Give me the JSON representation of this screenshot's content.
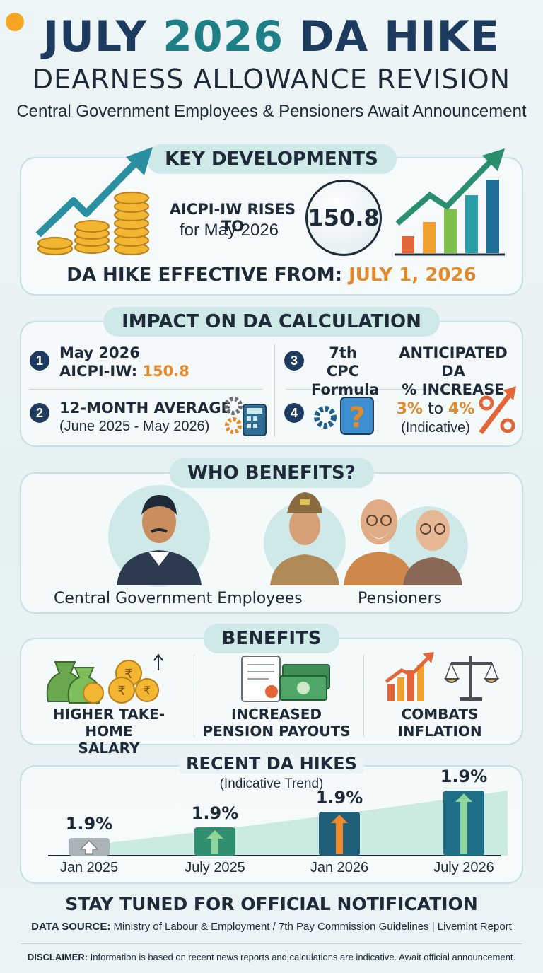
{
  "header": {
    "logo_text": "",
    "title_part1": "JULY ",
    "title_part2": "2026",
    "title_part3": " DA HIKE",
    "subtitle": "DEARNESS ALLOWANCE REVISION",
    "tagline": "Central Government Employees & Pensioners Await Announcement"
  },
  "key_developments": {
    "heading": "KEY DEVELOPMENTS",
    "aicpi_label": "AICPI-IW RISES TO",
    "aicpi_sub": "for May 2026",
    "aicpi_value": "150.8",
    "effective_label": "DA HIKE EFFECTIVE FROM: ",
    "effective_date": "JULY 1, 2026",
    "icons": [
      "rising-arrow-coins-icon",
      "bar-chart-arrow-icon"
    ]
  },
  "impact": {
    "heading": "IMPACT ON DA CALCULATION",
    "item1_num": "1",
    "item1_line1": "May 2026",
    "item1_line2": "AICPI-IW: ",
    "item1_value": "150.8",
    "item2_num": "2",
    "item2_line1": "12-MONTH AVERAGE",
    "item2_line2": "(June 2025 - May 2026)",
    "item3_num": "3",
    "item3_line1": "7th CPC",
    "item3_line2": "Formula",
    "item3_right1": "ANTICIPATED DA",
    "item3_right2": "% INCREASE",
    "item4_num": "4",
    "item4_range_a": "3%",
    "item4_to": " to ",
    "item4_range_b": "4%",
    "item4_note": "(Indicative)",
    "icons": [
      "gears-calculator-icon",
      "gear-question-icon",
      "percent-arrow-icon"
    ]
  },
  "who": {
    "heading": "WHO BENEFITS?",
    "label_employees": "Central Government Employees",
    "label_pensioners": "Pensioners",
    "icons": [
      "employee-avatar-icon",
      "officer-avatar-icon",
      "pensioner-avatar-icon"
    ]
  },
  "benefits": {
    "heading": "BENEFITS",
    "items": [
      {
        "line1": "HIGHER TAKE-HOME",
        "line2": "SALARY",
        "icon": "money-bags-rupee-icon"
      },
      {
        "line1": "INCREASED",
        "line2": "PENSION PAYOUTS",
        "icon": "pension-document-cash-icon"
      },
      {
        "line1": "COMBATS",
        "line2": "INFLATION",
        "icon": "chart-scales-icon"
      }
    ]
  },
  "recent": {
    "heading": "RECENT DA HIKES",
    "sub": "(Indicative Trend)"
  },
  "chart_data": {
    "type": "bar",
    "title": "RECENT DA HIKES",
    "subtitle": "(Indicative Trend)",
    "categories": [
      "Jan 2025",
      "July 2025",
      "Jan 2026",
      "July 2026"
    ],
    "values": [
      1.9,
      1.9,
      1.9,
      1.9
    ],
    "value_labels": [
      "1.9%",
      "1.9%",
      "1.9%",
      "1.9%"
    ],
    "visual_levels": [
      0.22,
      0.36,
      0.55,
      0.82
    ],
    "colors": [
      "#a9b3b8",
      "#2f8f6f",
      "#1f5f7a",
      "#1f6f86"
    ],
    "grid": false
  },
  "footer": {
    "stay_tuned": "STAY TUNED FOR OFFICIAL NOTIFICATION",
    "source_label": "DATA SOURCE:",
    "source_text": " Ministry of Labour & Employment / 7th Pay Commission Guidelines | Livemint Report",
    "disclaimer_label": "DISCLAIMER:",
    "disclaimer_text": " Information is based on recent news reports and calculations are indicative. Await official announcement."
  }
}
